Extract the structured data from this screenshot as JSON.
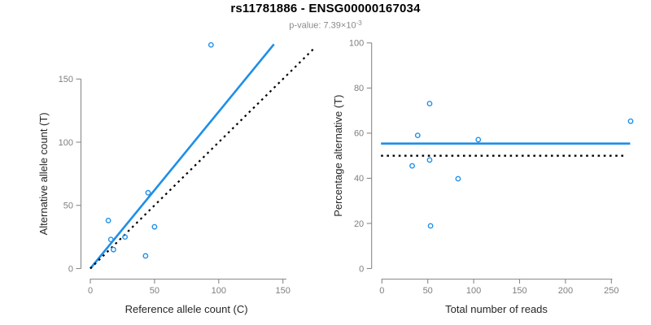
{
  "header": {
    "title": "rs11781886 - ENSG00000167034",
    "subtitle_text": "p-value: 7.39×10",
    "subtitle_exponent": "-3"
  },
  "colors": {
    "accent_blue": "#1E8FE8",
    "identity_black": "#000000",
    "axis_line": "#898989",
    "tick_label": "#7F7F7F",
    "axis_title": "#262626",
    "title": "#000000",
    "subtitle": "#8A8A8A",
    "background": "#FFFFFF"
  },
  "chart_data": [
    {
      "type": "scatter",
      "title": "",
      "xlabel": "Reference allele count (C)",
      "ylabel": "Alternative allele count (T)",
      "x_ticks": [
        0,
        50,
        100,
        150
      ],
      "y_ticks": [
        0,
        50,
        100,
        150
      ],
      "xlim": [
        0,
        150
      ],
      "ylim": [
        0,
        177
      ],
      "grid": false,
      "legend": "none",
      "points": [
        [
          14,
          38
        ],
        [
          16,
          23
        ],
        [
          18,
          15
        ],
        [
          27,
          25
        ],
        [
          43,
          10
        ],
        [
          45,
          60
        ],
        [
          50,
          33
        ],
        [
          94,
          177
        ]
      ],
      "lines": [
        {
          "name": "regression-line",
          "style": "solid",
          "color": "#1E8FE8",
          "width": 2.6,
          "points": [
            [
              0,
              0
            ],
            [
              143,
              177.5
            ]
          ]
        },
        {
          "name": "identity-line",
          "style": "dotted",
          "color": "#000000",
          "width": 2.2,
          "points": [
            [
              0,
              0
            ],
            [
              175,
              175
            ]
          ]
        }
      ]
    },
    {
      "type": "scatter",
      "title": "",
      "xlabel": "Total number of reads",
      "ylabel": "Percentage alternative (T)",
      "x_ticks": [
        0,
        50,
        100,
        150,
        200,
        250
      ],
      "y_ticks": [
        0,
        20,
        40,
        60,
        80,
        100
      ],
      "xlim": [
        0,
        271
      ],
      "ylim": [
        0,
        100
      ],
      "grid": false,
      "legend": "none",
      "points": [
        [
          33,
          45.5
        ],
        [
          39,
          59
        ],
        [
          52,
          48.1
        ],
        [
          52,
          73.1
        ],
        [
          53,
          18.9
        ],
        [
          83,
          39.8
        ],
        [
          105,
          57.1
        ],
        [
          271,
          65.3
        ]
      ],
      "lines": [
        {
          "name": "mean-line",
          "style": "solid",
          "color": "#1E8FE8",
          "width": 2.6,
          "points": [
            [
              -1,
              55.4
            ],
            [
              270.5,
              55.4
            ]
          ]
        },
        {
          "name": "expected-line",
          "style": "dotted",
          "color": "#000000",
          "width": 2.4,
          "points": [
            [
              -1,
              50
            ],
            [
              265,
              50
            ]
          ]
        }
      ]
    }
  ],
  "marker": {
    "shape": "open-circle",
    "radius": 2.7,
    "stroke_width": 1.4,
    "color": "#1E8FE8"
  }
}
